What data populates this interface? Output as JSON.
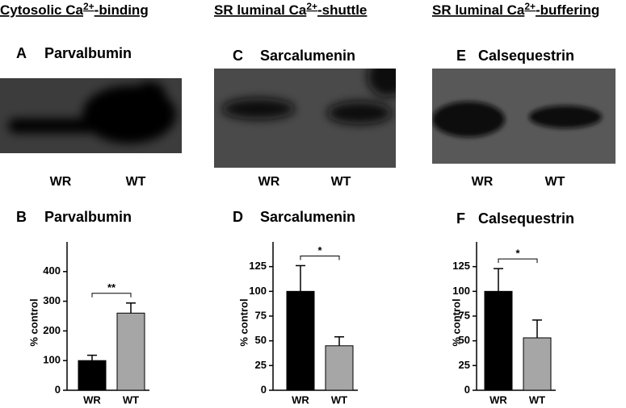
{
  "headers": [
    {
      "text": "Cytosolic Ca",
      "sup": "2+",
      "tail": "-binding"
    },
    {
      "text": "SR luminal Ca",
      "sup": "2+",
      "tail": "-shuttle"
    },
    {
      "text": "SR luminal Ca",
      "sup": "2+",
      "tail": "-buffering"
    }
  ],
  "blots": [
    {
      "letter": "A",
      "title": "Parvalbumin",
      "lanes": [
        "WR",
        "WT"
      ]
    },
    {
      "letter": "C",
      "title": "Sarcalumenin",
      "lanes": [
        "WR",
        "WT"
      ]
    },
    {
      "letter": "E",
      "title": "Calsequestrin",
      "lanes": [
        "WR",
        "WT"
      ]
    }
  ],
  "chart_data": [
    {
      "type": "bar",
      "letter": "B",
      "title": "Parvalbumin",
      "ylabel": "% control",
      "categories": [
        "WR",
        "WT"
      ],
      "values": [
        100,
        260
      ],
      "errors": [
        18,
        34
      ],
      "colors": [
        "#000000",
        "#a6a6a6"
      ],
      "ylim": [
        0,
        500
      ],
      "yticks": [
        0,
        100,
        200,
        300,
        400
      ],
      "significance": "**"
    },
    {
      "type": "bar",
      "letter": "D",
      "title": "Sarcalumenin",
      "ylabel": "% control",
      "categories": [
        "WR",
        "WT"
      ],
      "values": [
        100,
        45
      ],
      "errors": [
        26,
        9
      ],
      "colors": [
        "#000000",
        "#a6a6a6"
      ],
      "ylim": [
        0,
        150
      ],
      "yticks": [
        0,
        25,
        50,
        75,
        100,
        125
      ],
      "significance": "*"
    },
    {
      "type": "bar",
      "letter": "F",
      "title": "Calsequestrin",
      "ylabel": "% control",
      "categories": [
        "WR",
        "WT"
      ],
      "values": [
        100,
        53
      ],
      "errors": [
        23,
        18
      ],
      "colors": [
        "#000000",
        "#a6a6a6"
      ],
      "ylim": [
        0,
        150
      ],
      "yticks": [
        0,
        25,
        50,
        75,
        100,
        125
      ],
      "significance": "*"
    }
  ]
}
